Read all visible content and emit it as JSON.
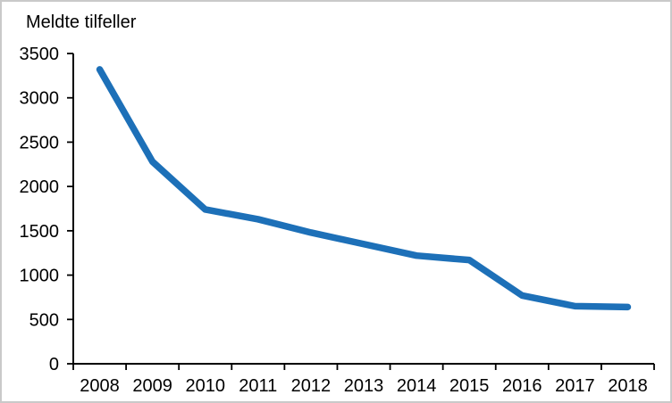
{
  "chart_data": {
    "type": "line",
    "title": "Meldte tilfeller",
    "series_name": "Meldte tilfeller",
    "categories": [
      "2008",
      "2009",
      "2010",
      "2011",
      "2012",
      "2013",
      "2014",
      "2015",
      "2016",
      "2017",
      "2018"
    ],
    "values": [
      3320,
      2280,
      1740,
      1630,
      1480,
      1350,
      1220,
      1170,
      770,
      650,
      640
    ],
    "xlabel": "",
    "ylabel": "",
    "ylim": [
      0,
      3500
    ],
    "y_ticks": [
      0,
      500,
      1000,
      1500,
      2000,
      2500,
      3000,
      3500
    ],
    "grid": false,
    "legend": "none",
    "line_color": "#1d70b8",
    "axis_color": "#000000",
    "text_color": "#000000",
    "background_color": "#ffffff",
    "border_color": "#c9c9c9"
  }
}
